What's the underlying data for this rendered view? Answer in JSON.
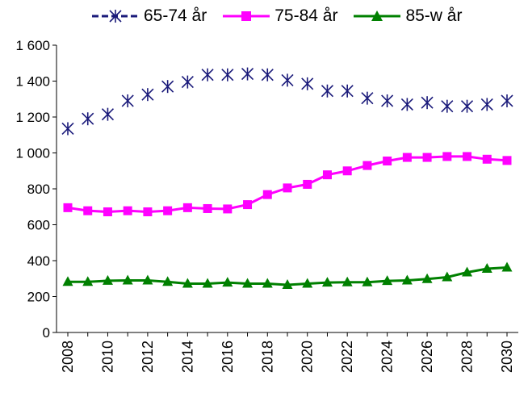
{
  "chart_data": {
    "type": "line",
    "title": "",
    "xlabel": "",
    "ylabel": "",
    "x": [
      2008,
      2009,
      2010,
      2011,
      2012,
      2013,
      2014,
      2015,
      2016,
      2017,
      2018,
      2019,
      2020,
      2021,
      2022,
      2023,
      2024,
      2025,
      2026,
      2027,
      2028,
      2029,
      2030
    ],
    "x_tick_labels": [
      "2008",
      "2010",
      "2012",
      "2014",
      "2016",
      "2018",
      "2020",
      "2022",
      "2024",
      "2026",
      "2028",
      "2030"
    ],
    "y_tick_labels": [
      "0",
      "200",
      "400",
      "600",
      "800",
      "1 000",
      "1 200",
      "1 400",
      "1 600"
    ],
    "ylim": [
      0,
      1600
    ],
    "grid": false,
    "legend_position": "top",
    "series": [
      {
        "name": "65-74 år",
        "color": "#1a1a7a",
        "marker": "asterisk",
        "values": [
          1135,
          1190,
          1215,
          1290,
          1325,
          1370,
          1395,
          1435,
          1435,
          1440,
          1435,
          1405,
          1385,
          1345,
          1345,
          1305,
          1290,
          1270,
          1280,
          1260,
          1260,
          1270,
          1290
        ]
      },
      {
        "name": "75-84 år",
        "color": "#ff00ff",
        "marker": "square",
        "values": [
          695,
          678,
          672,
          678,
          672,
          678,
          695,
          690,
          688,
          712,
          768,
          805,
          825,
          878,
          900,
          930,
          955,
          975,
          975,
          980,
          980,
          965,
          958
        ]
      },
      {
        "name": "85-w år",
        "color": "#008000",
        "marker": "triangle",
        "values": [
          282,
          282,
          288,
          290,
          290,
          282,
          272,
          272,
          278,
          272,
          272,
          265,
          272,
          278,
          280,
          280,
          287,
          290,
          298,
          308,
          335,
          355,
          362
        ]
      }
    ]
  }
}
